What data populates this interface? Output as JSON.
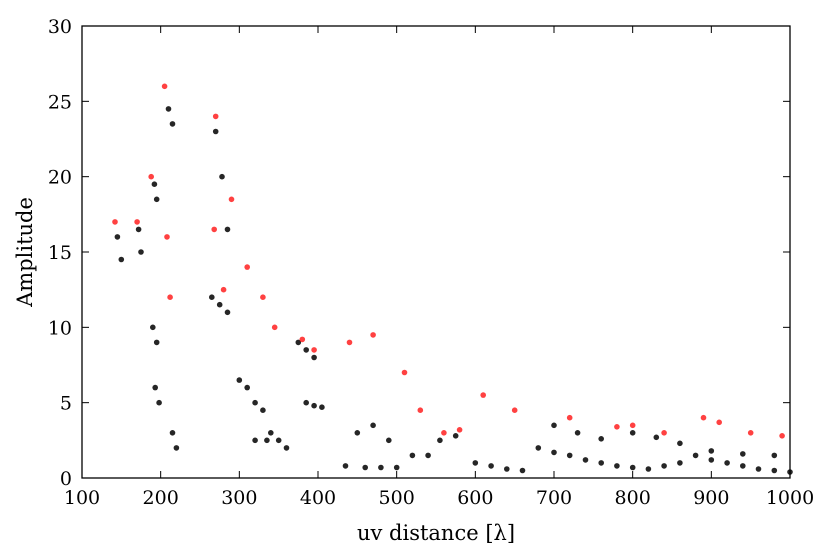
{
  "chart_data": {
    "type": "scatter",
    "xlabel": "uv distance [λ]",
    "ylabel": "Amplitude",
    "xlim": [
      100,
      1000
    ],
    "ylim": [
      0,
      30
    ],
    "xticks": [
      100,
      200,
      300,
      400,
      500,
      600,
      700,
      800,
      900,
      1000
    ],
    "yticks": [
      0,
      5,
      10,
      15,
      20,
      25,
      30
    ],
    "grid": false,
    "colors": {
      "primary": "#000000",
      "secondary": "#ff2020"
    },
    "series": [
      {
        "color": "#000000",
        "x": [
          145,
          150,
          172,
          175,
          192,
          195,
          210,
          215,
          190,
          195,
          193,
          198,
          215,
          220,
          265,
          275,
          285,
          270,
          278,
          285,
          300,
          310,
          320,
          330,
          320,
          335,
          340,
          350,
          360,
          375,
          385,
          395,
          385,
          395,
          405,
          435,
          460,
          480,
          500,
          520,
          540,
          450,
          470,
          490,
          555,
          575,
          600,
          620,
          640,
          660,
          680,
          700,
          720,
          740,
          760,
          780,
          800,
          820,
          840,
          860,
          880,
          900,
          920,
          940,
          960,
          980,
          1000,
          700,
          730,
          760,
          800,
          830,
          860,
          900,
          940,
          980
        ],
        "y": [
          16.0,
          14.5,
          16.5,
          15.0,
          19.5,
          18.5,
          24.5,
          23.5,
          10.0,
          9.0,
          6.0,
          5.0,
          3.0,
          2.0,
          12.0,
          11.5,
          11.0,
          23.0,
          20.0,
          16.5,
          6.5,
          6.0,
          5.0,
          4.5,
          2.5,
          2.5,
          3.0,
          2.5,
          2.0,
          9.0,
          8.5,
          8.0,
          5.0,
          4.8,
          4.7,
          0.8,
          0.7,
          0.7,
          0.7,
          1.5,
          1.5,
          3.0,
          3.5,
          2.5,
          2.5,
          2.8,
          1.0,
          0.8,
          0.6,
          0.5,
          2.0,
          1.7,
          1.5,
          1.2,
          1.0,
          0.8,
          0.7,
          0.6,
          0.8,
          1.0,
          1.5,
          1.2,
          1.0,
          0.8,
          0.6,
          0.5,
          0.4,
          3.5,
          3.0,
          2.6,
          3.0,
          2.7,
          2.3,
          1.8,
          1.6,
          1.5
        ]
      },
      {
        "color": "#ff2020",
        "x": [
          142,
          170,
          188,
          205,
          208,
          212,
          270,
          268,
          280,
          290,
          310,
          330,
          345,
          380,
          395,
          440,
          470,
          510,
          530,
          560,
          580,
          610,
          650,
          720,
          780,
          800,
          840,
          890,
          910,
          950,
          990
        ],
        "y": [
          17.0,
          17.0,
          20.0,
          26.0,
          16.0,
          12.0,
          24.0,
          16.5,
          12.5,
          18.5,
          14.0,
          12.0,
          10.0,
          9.2,
          8.5,
          9.0,
          9.5,
          7.0,
          4.5,
          3.0,
          3.2,
          5.5,
          4.5,
          4.0,
          3.4,
          3.5,
          3.0,
          4.0,
          3.7,
          3.0,
          2.8
        ]
      }
    ]
  }
}
